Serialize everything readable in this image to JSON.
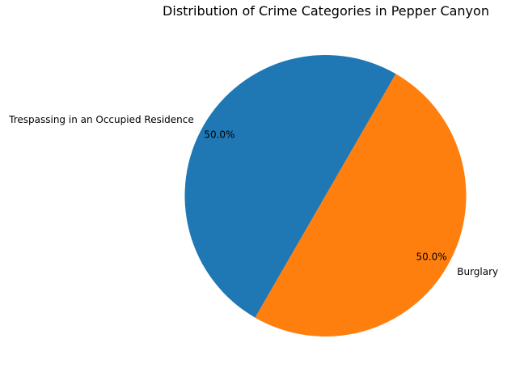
{
  "chart_data": {
    "type": "pie",
    "title": "Distribution of Crime Categories in Pepper Canyon",
    "slices": [
      {
        "label": "Trespassing in an Occupied Residence",
        "value": 50.0,
        "pct_label": "50.0%",
        "color": "#1f77b4"
      },
      {
        "label": "Burglary",
        "value": 50.0,
        "pct_label": "50.0%",
        "color": "#ff7f0e"
      }
    ],
    "start_angle_deg": 60,
    "direction": "counterclockwise",
    "legend": "none"
  }
}
